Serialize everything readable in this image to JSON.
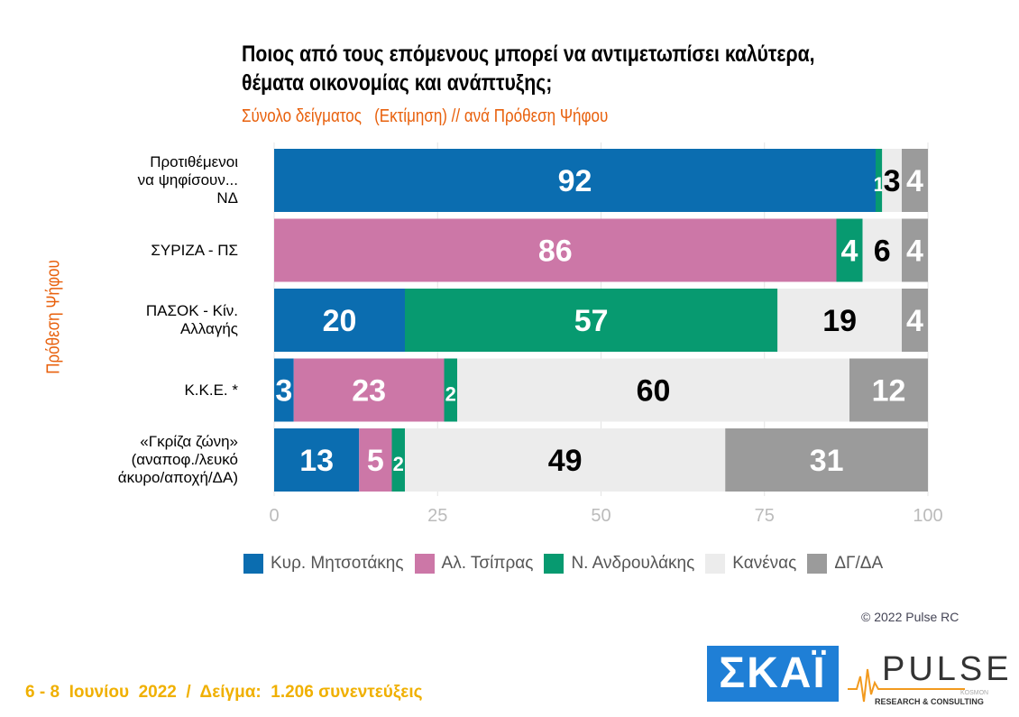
{
  "title": "Ποιος από τους επόμενους μπορεί να αντιμετωπίσει καλύτερα, θέματα οικονομίας και ανάπτυξης;",
  "subtitle": "Σύνολο δείγματος   (Εκτίμηση) // ανά Πρόθεση Ψήφου",
  "copyright": "© 2022 Pulse RC",
  "footer": "6 - 8  Ιουνίου  2022  /  Δείγμα:  1.206 συνεντεύξεις",
  "logos": {
    "skai": "ΣΚΑΪ",
    "pulse": "PULSE",
    "pulse_sub": "RESEARCH & CONSULTING",
    "kosmon": "KOSMON"
  },
  "chart_data": {
    "type": "bar",
    "orientation": "horizontal",
    "stacked": true,
    "ylabel": "Πρόθεση Ψήφου",
    "xlim": [
      0,
      100
    ],
    "xticks": [
      "0",
      "25",
      "50",
      "75",
      "100"
    ],
    "grid": true,
    "legend_position": "bottom",
    "categories": [
      "Προτιθέμενοι\nνα ψηφίσουν...\nΝΔ",
      "ΣΥΡΙΖΑ - ΠΣ",
      "ΠΑΣΟΚ - Κίν.\nΑλλαγής",
      "Κ.Κ.Ε. *",
      "«Γκρίζα ζώνη»\n(αναποφ./λευκό\nάκυρο/αποχή/ΔΑ)"
    ],
    "series": [
      {
        "name": "Κυρ. Μητσοτάκης",
        "color": "#0b6db0",
        "label_color": "#ffffff",
        "values": [
          92,
          0,
          20,
          3,
          13
        ]
      },
      {
        "name": "Αλ. Τσίπρας",
        "color": "#cc77a7",
        "label_color": "#ffffff",
        "values": [
          0,
          86,
          0,
          23,
          5
        ]
      },
      {
        "name": "Ν. Ανδρουλάκης",
        "color": "#079a70",
        "label_color": "#ffffff",
        "values": [
          1,
          4,
          57,
          2,
          2
        ]
      },
      {
        "name": "Κανένας",
        "color": "#ececec",
        "label_color": "#000000",
        "values": [
          3,
          6,
          19,
          60,
          49
        ]
      },
      {
        "name": "ΔΓ/ΔΑ",
        "color": "#9b9b9b",
        "label_color": "#ffffff",
        "values": [
          4,
          4,
          4,
          12,
          31
        ]
      }
    ]
  }
}
